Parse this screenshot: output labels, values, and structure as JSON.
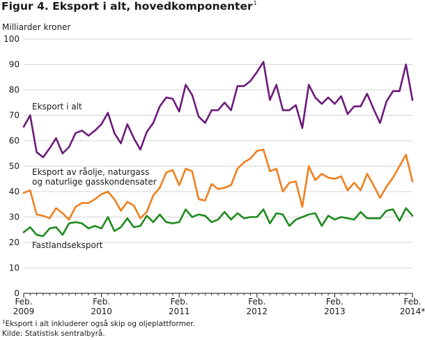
{
  "title": "Figur 4. Eksport i alt, hovedkomponenter",
  "title_note": "1",
  "footnote_mark": "1",
  "footnote": "Eksport i alt inkluderer også skip og oljeplattformer.",
  "source": "Kilde: Statistisk sentralbyrå.",
  "chart_data": {
    "type": "line",
    "title": "Figur 4. Eksport i alt, hovedkomponenter",
    "ylabel": "Milliarder kroner",
    "xlabel": "",
    "ylim": [
      0,
      100
    ],
    "yticks": [
      0,
      10,
      20,
      30,
      40,
      50,
      60,
      70,
      80,
      90,
      100
    ],
    "grid": true,
    "x_start": "2009-02",
    "x_end": "2014-02",
    "xtick_labels": [
      {
        "month_index": 0,
        "line1": "Feb.",
        "line2": "2009"
      },
      {
        "month_index": 12,
        "line1": "Feb.",
        "line2": "2010"
      },
      {
        "month_index": 24,
        "line1": "Feb.",
        "line2": "2011"
      },
      {
        "month_index": 36,
        "line1": "Feb.",
        "line2": "2012"
      },
      {
        "month_index": 48,
        "line1": "Feb.",
        "line2": "2013"
      },
      {
        "month_index": 60,
        "line1": "Feb.",
        "line2": "2014*"
      }
    ],
    "series": [
      {
        "name": "Eksport i alt",
        "label_lines": [
          "Eksport i alt"
        ],
        "color": "#6b1a7a",
        "values": [
          65.5,
          70,
          55.5,
          53.5,
          57,
          61,
          55,
          57.5,
          63,
          64,
          62,
          64,
          66.5,
          71,
          63,
          59,
          66.5,
          61,
          56.5,
          63.5,
          67,
          73.5,
          77,
          76.5,
          71.5,
          82,
          78,
          69.5,
          67,
          72,
          72,
          75,
          72,
          81.5,
          81.5,
          83.5,
          87,
          91,
          76,
          82,
          72,
          72,
          74,
          65,
          82,
          77,
          74.5,
          77,
          74.5,
          77.5,
          70.5,
          73.5,
          73.5,
          78.5,
          72.5,
          67,
          75.5,
          79.5,
          79.5,
          90,
          76
        ]
      },
      {
        "name": "Eksport av råolje, naturgass og naturlige gasskondensater",
        "label_lines": [
          "Eksport av råolje, naturgass",
          "og naturlige gasskondensater"
        ],
        "color": "#f07f1d",
        "values": [
          39.5,
          40.5,
          31,
          30.5,
          29.5,
          33.5,
          31.5,
          29,
          34,
          35.5,
          35.5,
          37,
          39,
          40,
          37,
          32.5,
          36,
          34.5,
          29.5,
          32,
          38.5,
          41.5,
          47.5,
          48.5,
          42.5,
          49,
          48,
          37,
          36.5,
          43,
          41,
          41.5,
          42.5,
          49,
          51.5,
          53,
          56,
          56.5,
          48,
          49,
          40,
          43.5,
          44,
          34,
          50,
          44.5,
          47,
          45.5,
          45,
          46,
          40.5,
          43.5,
          40.5,
          47,
          42.5,
          37.5,
          42,
          45.5,
          50,
          54.5,
          44
        ]
      },
      {
        "name": "Fastlandseksport",
        "label_lines": [
          "Fastlandseksport"
        ],
        "color": "#1e8a1e",
        "values": [
          24,
          26,
          23,
          22.5,
          25.5,
          26,
          23,
          27.5,
          28,
          27.5,
          25.5,
          26.5,
          25.5,
          30,
          24.5,
          26,
          29.5,
          26,
          26.5,
          30.5,
          28,
          31,
          28,
          27.5,
          28,
          33,
          30,
          31,
          30.5,
          28,
          29,
          32,
          29,
          31.5,
          29.5,
          30,
          30,
          33,
          27.5,
          31.5,
          31,
          26.5,
          29,
          30,
          31,
          31.5,
          26.5,
          30.5,
          29,
          30,
          29.5,
          29,
          32,
          29.5,
          29.5,
          29.5,
          32.5,
          33,
          28.5,
          33.5,
          30.5
        ]
      }
    ]
  }
}
